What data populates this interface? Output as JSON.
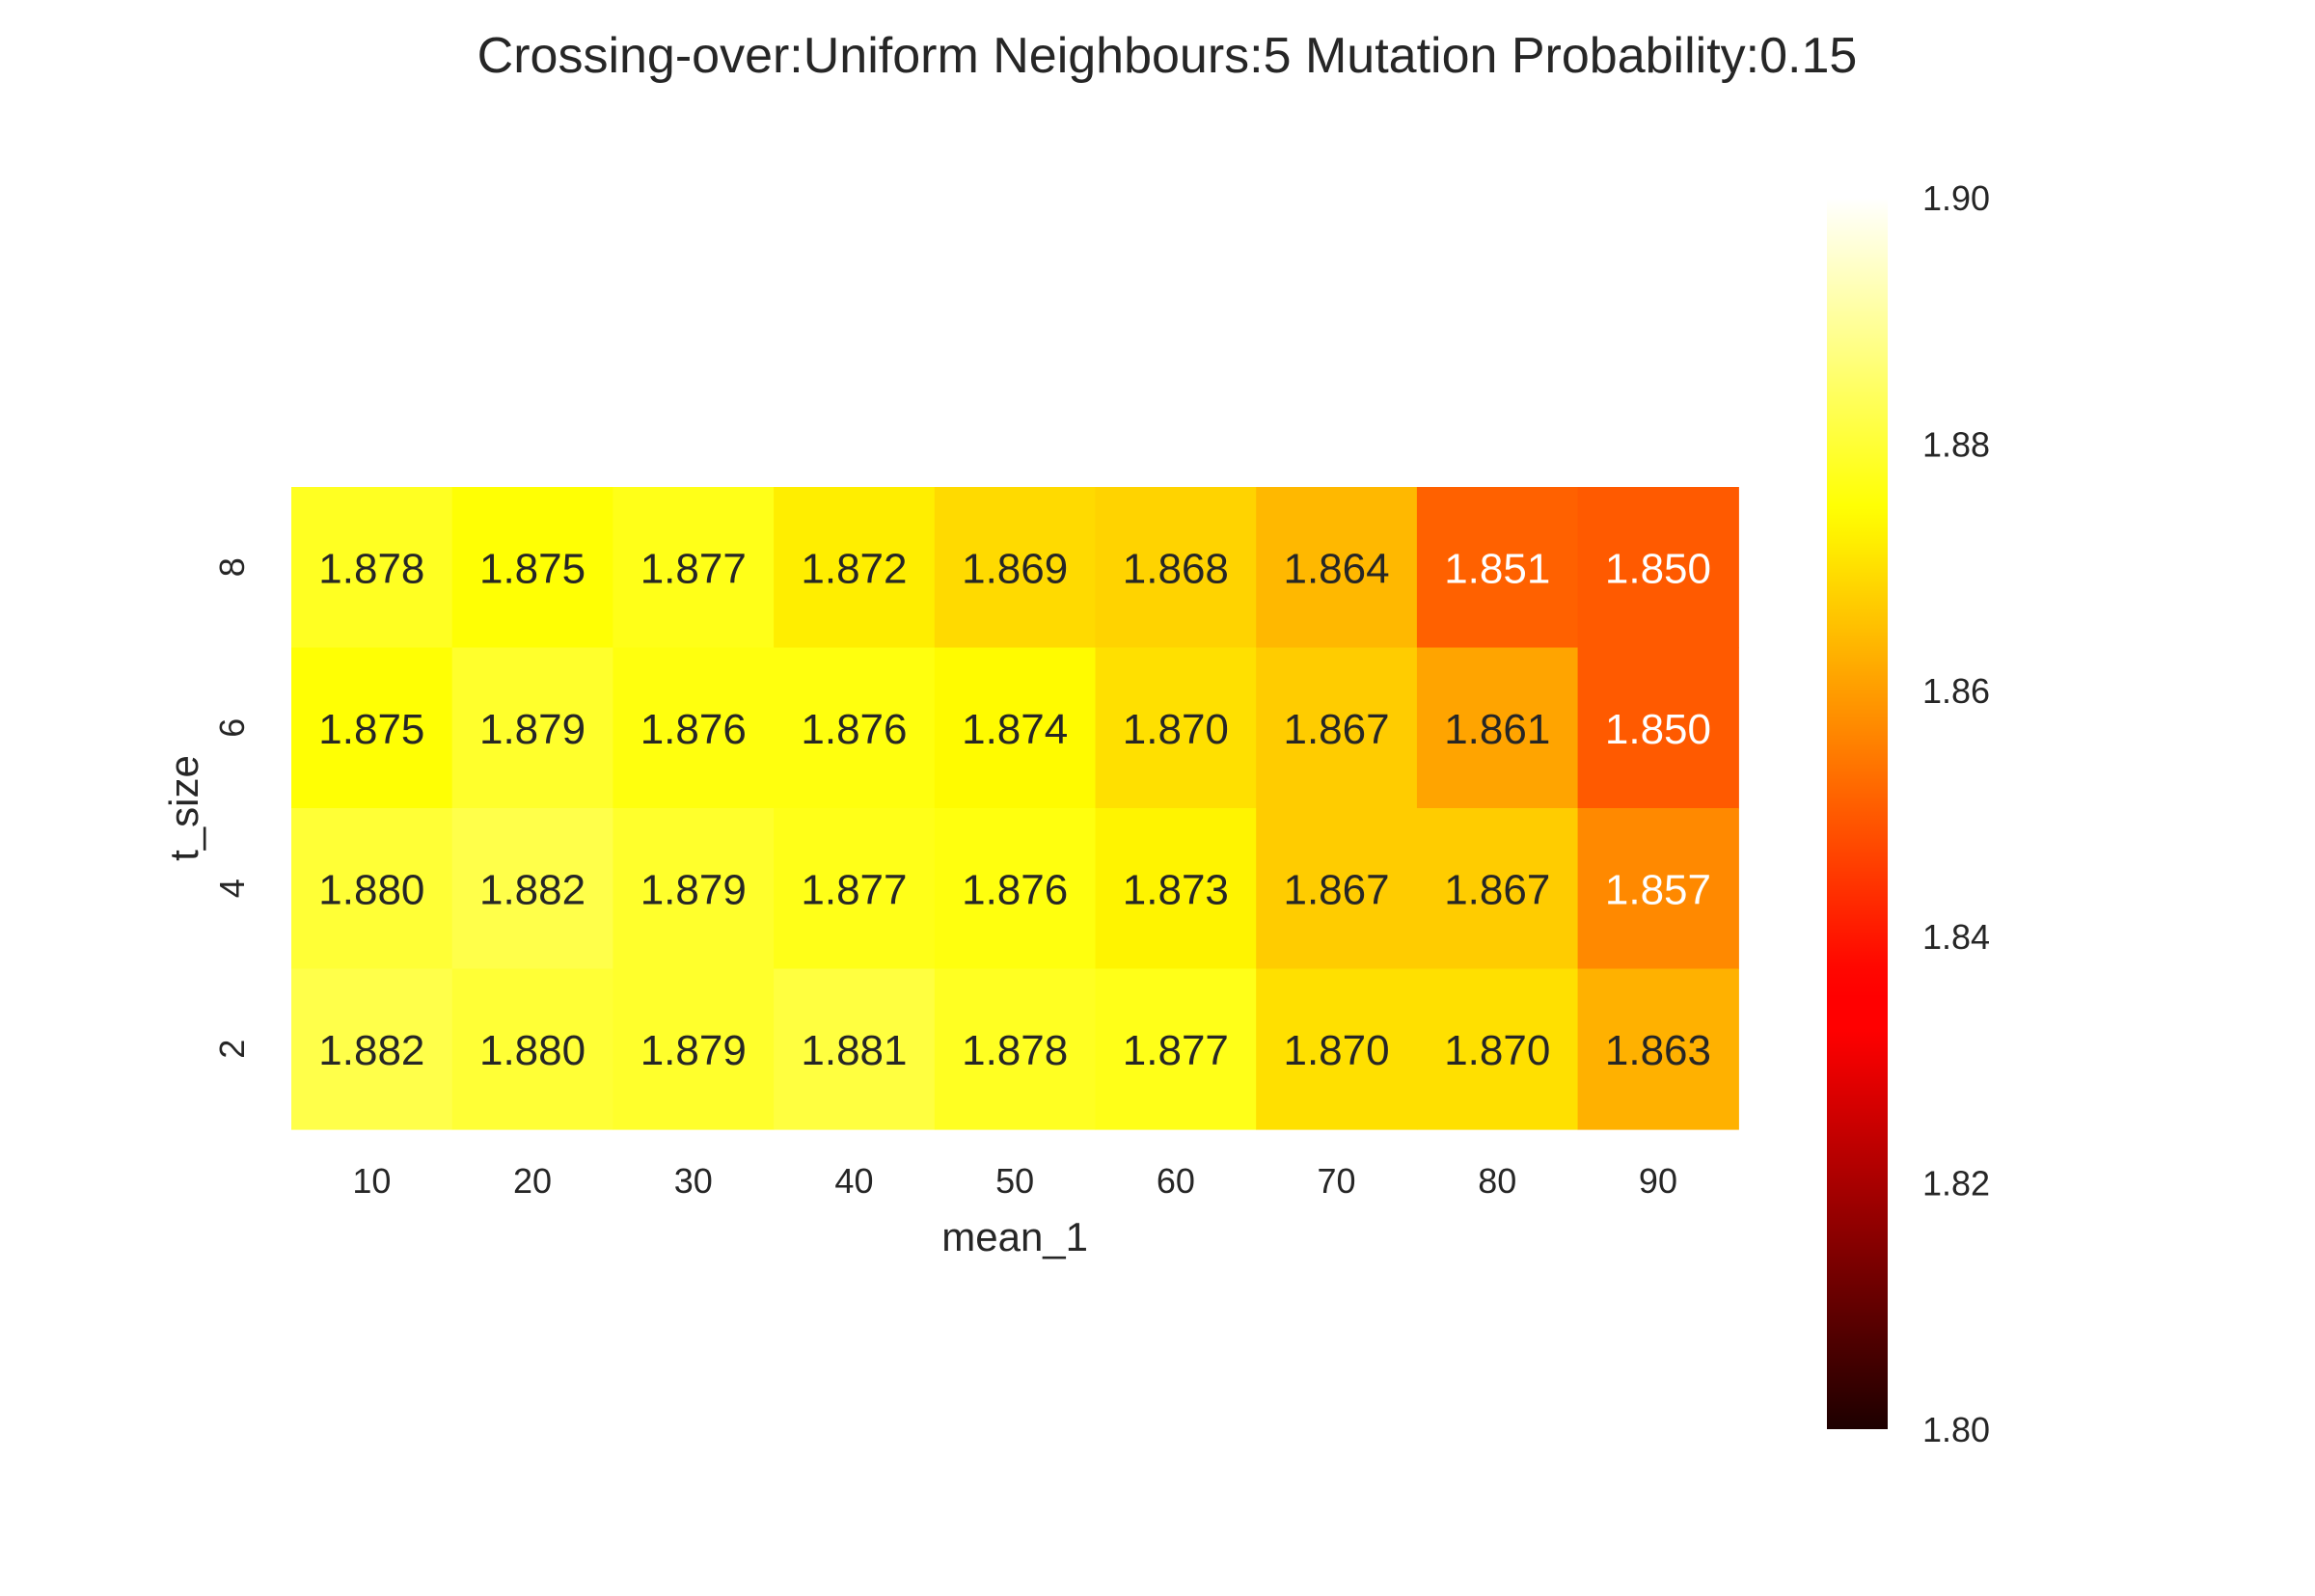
{
  "chart_data": {
    "type": "heatmap",
    "title": "Crossing-over:Uniform Neighbours:5 Mutation Probability:0.15",
    "xlabel": "mean_1",
    "ylabel": "t_size",
    "x_categories": [
      "10",
      "20",
      "30",
      "40",
      "50",
      "60",
      "70",
      "80",
      "90"
    ],
    "y_categories": [
      "8",
      "6",
      "4",
      "2"
    ],
    "values": [
      [
        1.878,
        1.875,
        1.877,
        1.872,
        1.869,
        1.868,
        1.864,
        1.851,
        1.85
      ],
      [
        1.875,
        1.879,
        1.876,
        1.876,
        1.874,
        1.87,
        1.867,
        1.861,
        1.85
      ],
      [
        1.88,
        1.882,
        1.879,
        1.877,
        1.876,
        1.873,
        1.867,
        1.867,
        1.857
      ],
      [
        1.882,
        1.88,
        1.879,
        1.881,
        1.878,
        1.877,
        1.87,
        1.87,
        1.863
      ]
    ],
    "value_format": "3 decimals",
    "colormap": "hot",
    "vmin": 1.8,
    "vmax": 1.9,
    "colorbar_ticks": [
      "1.80",
      "1.82",
      "1.84",
      "1.86",
      "1.88",
      "1.90"
    ],
    "colors": {
      "text_dark": "#262626",
      "text_light": "#ffffff"
    }
  }
}
